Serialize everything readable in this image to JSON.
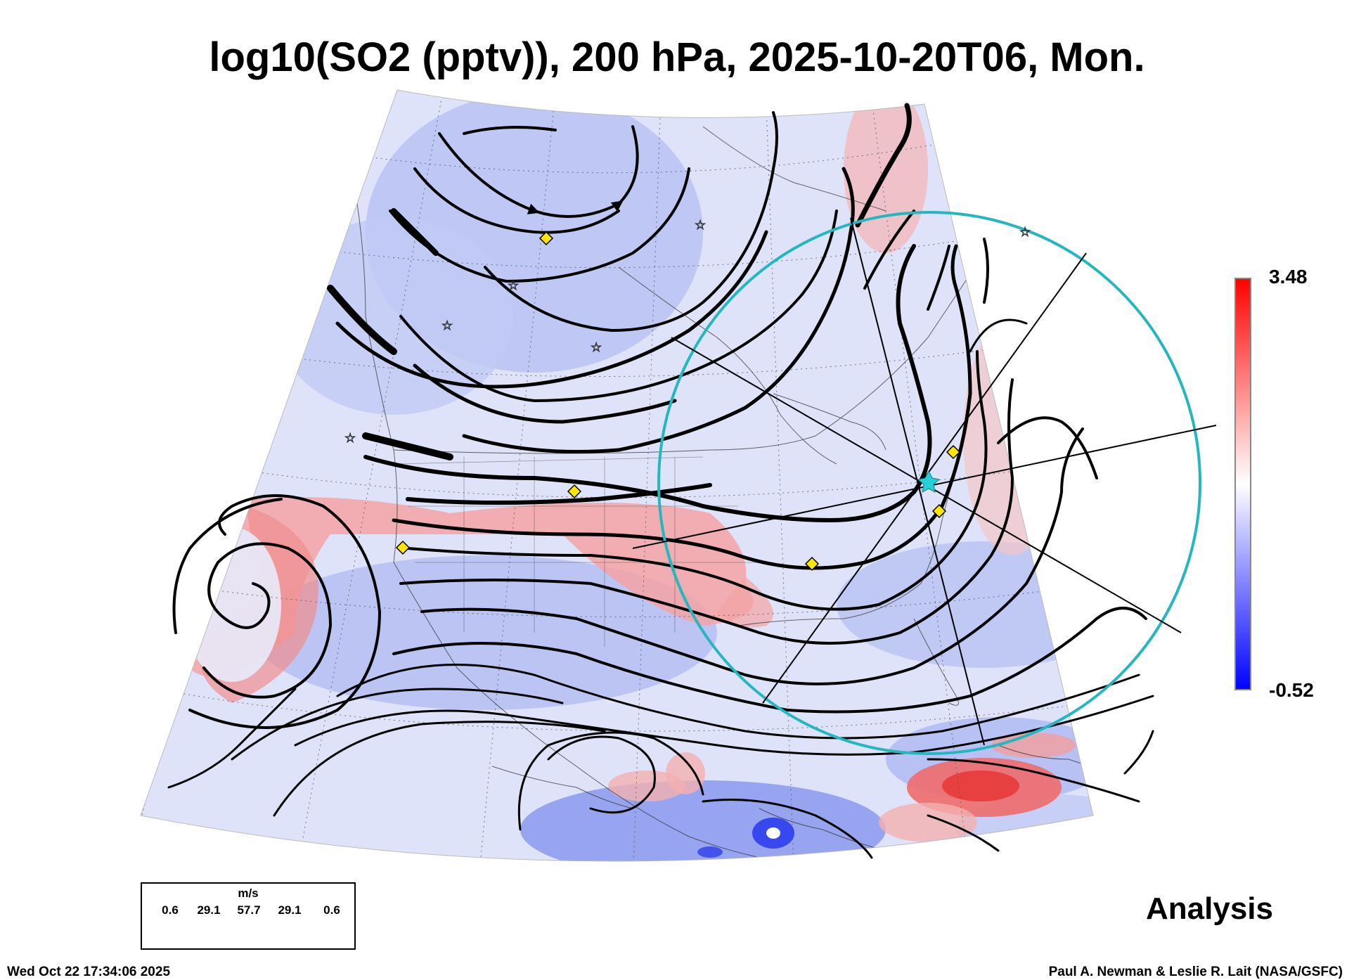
{
  "title": "log10(SO2 (pptv)), 200 hPa, 2025-10-20T06, Mon.",
  "colorbar": {
    "max_label": "3.48",
    "min_label": "-0.52",
    "colors": [
      "#0000ff",
      "#ffffff",
      "#ff0000"
    ]
  },
  "wind_legend": {
    "unit": "m/s",
    "values": [
      "0.6",
      "29.1",
      "57.7",
      "29.1",
      "0.6"
    ]
  },
  "product_label": "Analysis",
  "timestamp": "Wed Oct 22 17:34:06 2025",
  "credit": "Paul A. Newman & Leslie R. Lait (NASA/GSFC)",
  "map": {
    "projection": "polar stereographic sector",
    "field_colors": {
      "low": "#9aa6f0",
      "mid": "#e6e9fb",
      "high": "#f39a9a"
    },
    "trajectory_circle_color": "#25b7c0",
    "marker_color": "#ffe600",
    "station_icons": [
      "diamond-marker",
      "star-marker",
      "cyan-star-center"
    ]
  }
}
